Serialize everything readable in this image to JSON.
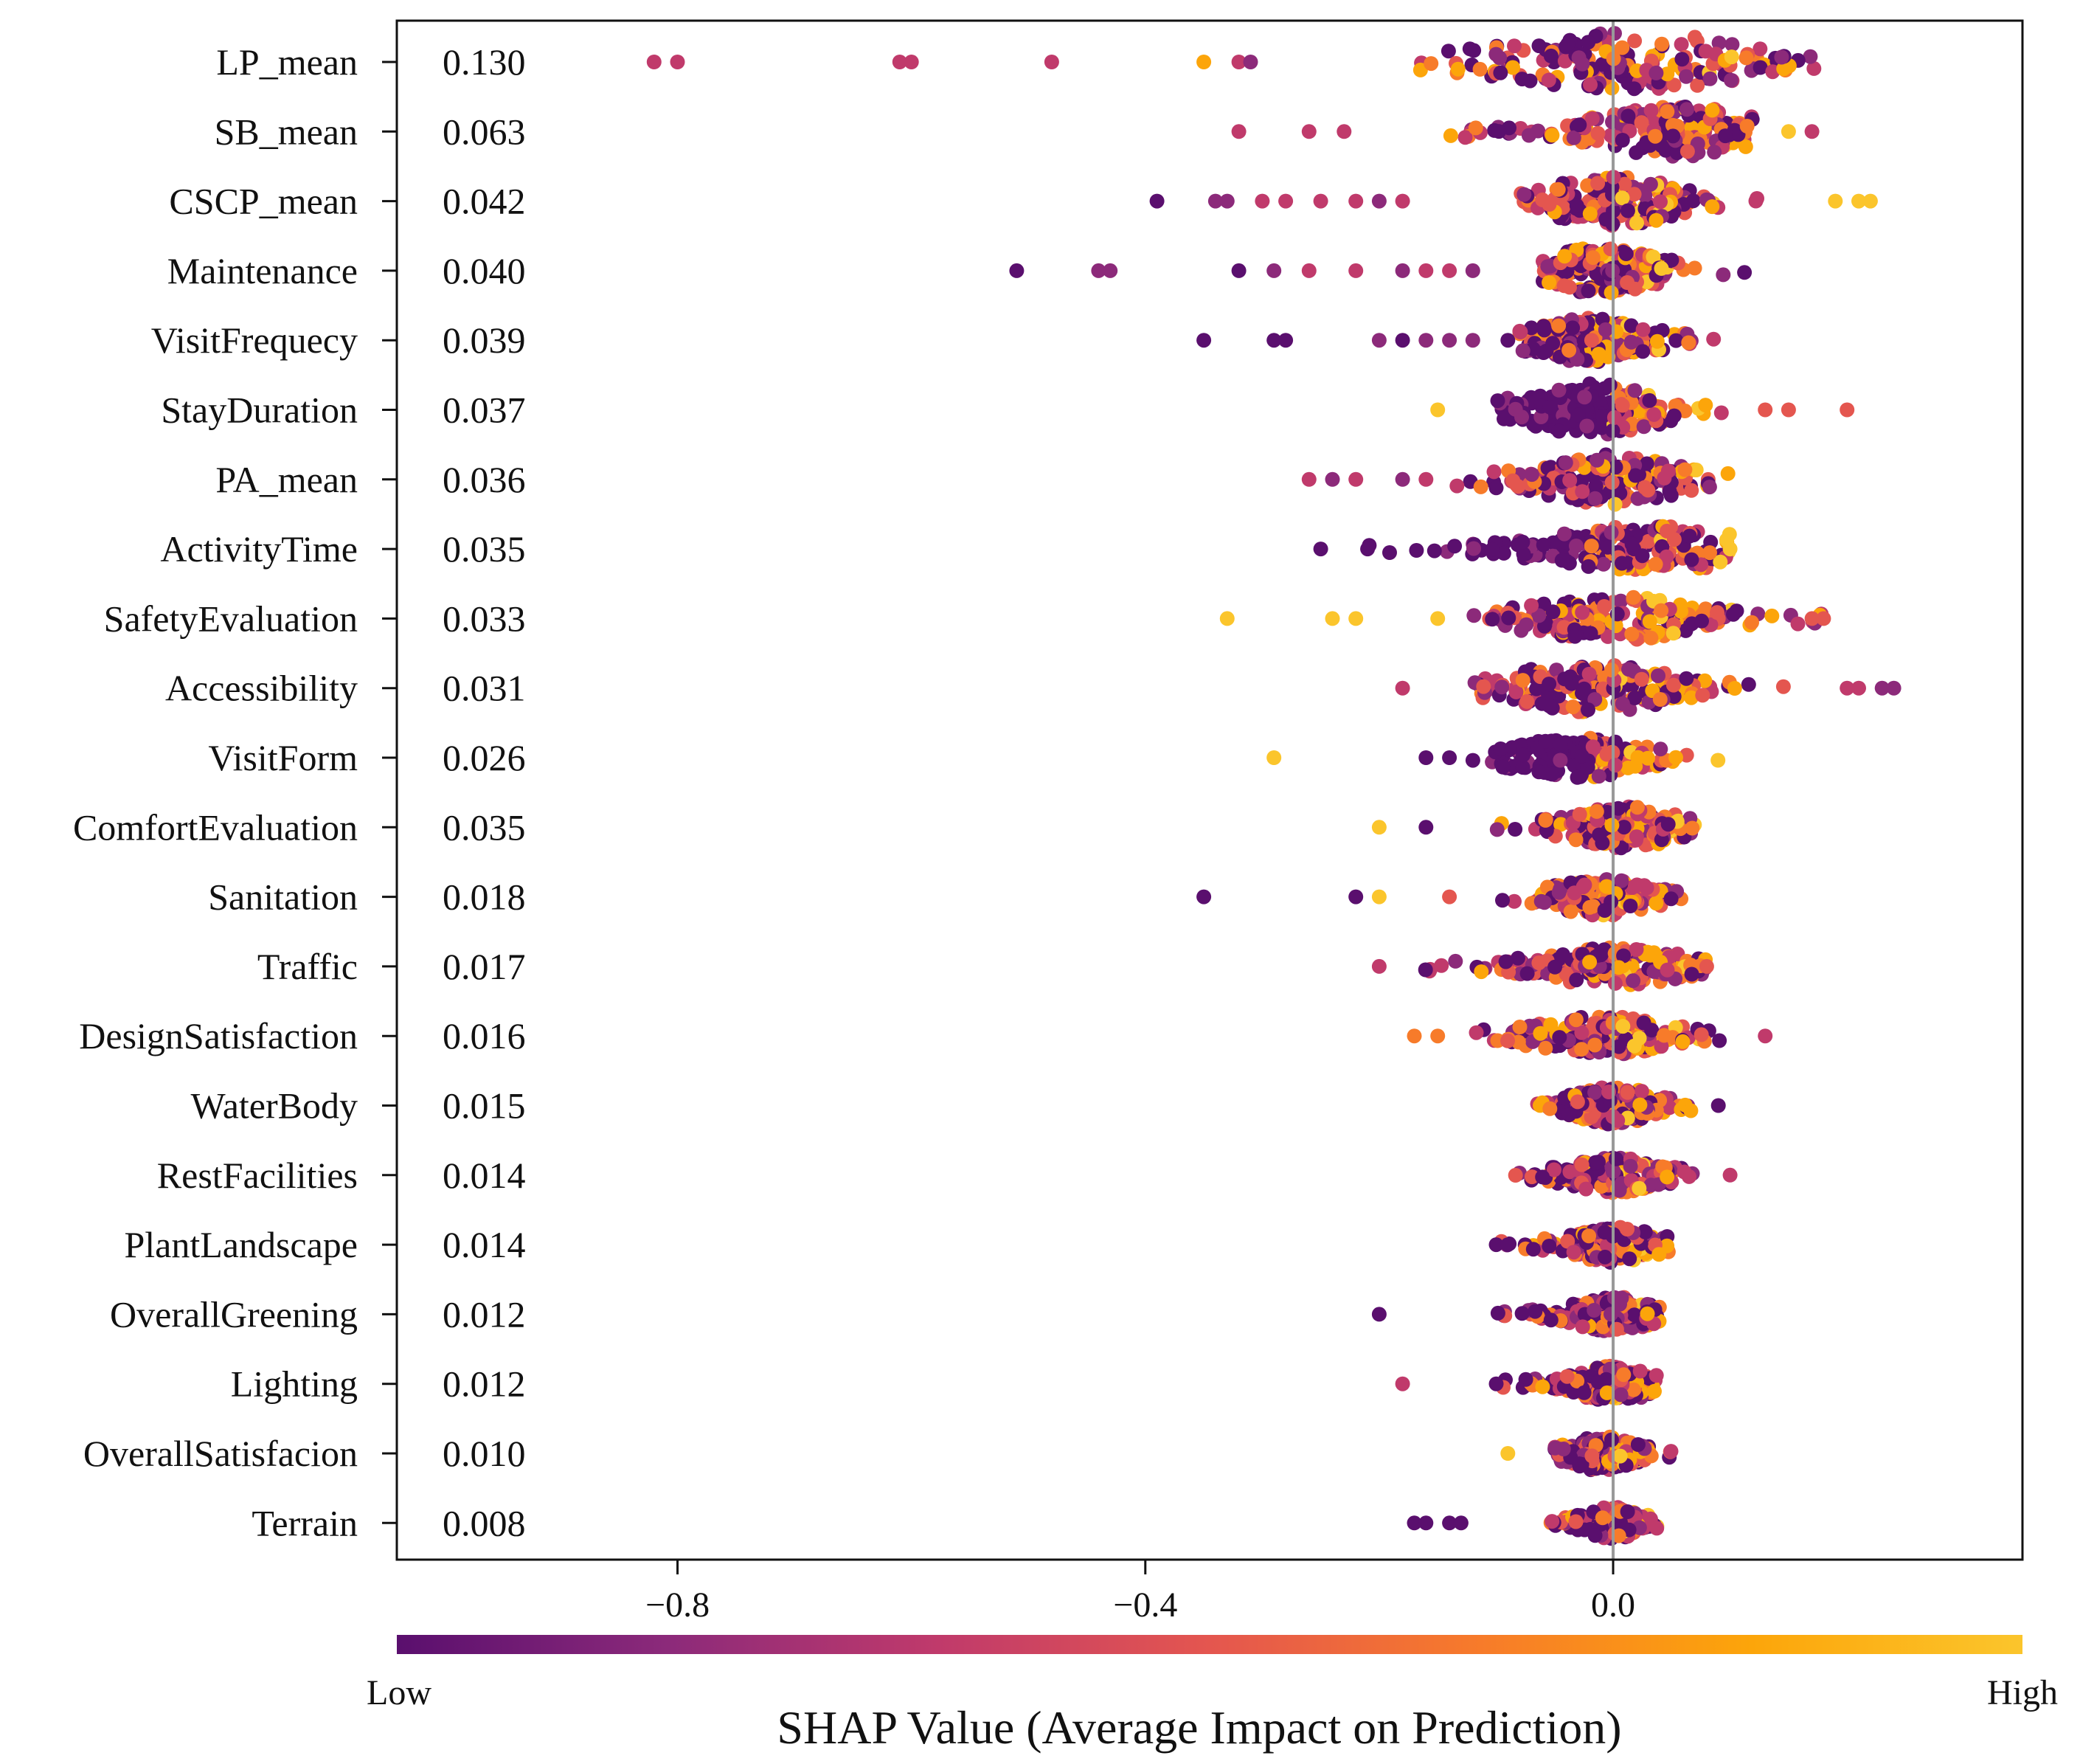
{
  "chart_data": {
    "type": "scatter",
    "subtype": "shap-beeswarm",
    "title": "",
    "xlabel": "SHAP Value (Average Impact on Prediction)",
    "ylabel": "",
    "xlim": [
      -1.04,
      0.35
    ],
    "xticks": [
      -0.8,
      -0.4,
      0.0
    ],
    "xtick_labels": [
      "−0.8",
      "−0.4",
      "0.0"
    ],
    "zero_line": true,
    "grid": false,
    "colorbar": {
      "low_label": "Low",
      "high_label": "High",
      "colors": [
        "#5a0f6e",
        "#8c2a7a",
        "#c03a6b",
        "#e4564f",
        "#f77b2a",
        "#fca50a",
        "#fbc52c"
      ]
    },
    "features": [
      {
        "name": "LP_mean",
        "importance": "0.130",
        "min": -0.82,
        "max": 0.31,
        "range": [
          -0.18,
          0.26
        ],
        "center": 0.02,
        "width": 1.0,
        "outliers": [
          [
            -0.82,
            2
          ],
          [
            -0.8,
            2
          ],
          [
            -0.61,
            2
          ],
          [
            -0.6,
            2
          ],
          [
            -0.48,
            2
          ],
          [
            -0.35,
            5
          ],
          [
            -0.32,
            2
          ],
          [
            -0.31,
            1
          ]
        ]
      },
      {
        "name": "SB_mean",
        "importance": "0.063",
        "min": -0.32,
        "max": 0.17,
        "range": [
          -0.18,
          0.12
        ],
        "center": 0.06,
        "width": 0.85,
        "outliers": [
          [
            -0.32,
            2
          ],
          [
            -0.26,
            2
          ],
          [
            -0.23,
            2
          ],
          [
            0.15,
            6
          ],
          [
            0.17,
            2
          ]
        ]
      },
      {
        "name": "CSCP_mean",
        "importance": "0.042",
        "min": -0.39,
        "max": 0.22,
        "range": [
          -0.08,
          0.14
        ],
        "center": 0.0,
        "width": 0.85,
        "outliers": [
          [
            -0.39,
            0
          ],
          [
            -0.34,
            1
          ],
          [
            -0.33,
            1
          ],
          [
            -0.3,
            2
          ],
          [
            -0.28,
            2
          ],
          [
            -0.25,
            2
          ],
          [
            -0.22,
            2
          ],
          [
            -0.2,
            1
          ],
          [
            -0.18,
            2
          ],
          [
            0.19,
            6
          ],
          [
            0.21,
            6
          ],
          [
            0.22,
            6
          ]
        ]
      },
      {
        "name": "Maintenance",
        "importance": "0.040",
        "min": -0.51,
        "max": 0.13,
        "range": [
          -0.06,
          0.13
        ],
        "center": -0.01,
        "width": 0.8,
        "outliers": [
          [
            -0.51,
            0
          ],
          [
            -0.44,
            1
          ],
          [
            -0.43,
            1
          ],
          [
            -0.32,
            0
          ],
          [
            -0.29,
            1
          ],
          [
            -0.26,
            2
          ],
          [
            -0.22,
            2
          ],
          [
            -0.18,
            1
          ],
          [
            -0.16,
            2
          ],
          [
            -0.14,
            2
          ],
          [
            -0.12,
            1
          ]
        ]
      },
      {
        "name": "VisitFrequecy",
        "importance": "0.039",
        "min": -0.35,
        "max": 0.11,
        "range": [
          -0.08,
          0.11
        ],
        "center": -0.02,
        "width": 0.75,
        "outliers": [
          [
            -0.35,
            0
          ],
          [
            -0.29,
            0
          ],
          [
            -0.28,
            0
          ],
          [
            -0.2,
            1
          ],
          [
            -0.18,
            0
          ],
          [
            -0.16,
            1
          ],
          [
            -0.14,
            1
          ],
          [
            -0.12,
            1
          ],
          [
            -0.09,
            0
          ]
        ]
      },
      {
        "name": "StayDuration",
        "importance": "0.037",
        "min": -0.15,
        "max": 0.2,
        "range": [
          -0.1,
          0.12
        ],
        "center": -0.02,
        "width": 0.9,
        "outliers": [
          [
            -0.15,
            6
          ],
          [
            0.13,
            3
          ],
          [
            0.15,
            3
          ],
          [
            0.2,
            3
          ]
        ]
      },
      {
        "name": "PA_mean",
        "importance": "0.036",
        "min": -0.26,
        "max": 0.11,
        "range": [
          -0.14,
          0.11
        ],
        "center": 0.0,
        "width": 0.85,
        "outliers": [
          [
            -0.26,
            2
          ],
          [
            -0.24,
            1
          ],
          [
            -0.22,
            2
          ],
          [
            -0.18,
            1
          ],
          [
            -0.16,
            2
          ]
        ]
      },
      {
        "name": "ActivityTime",
        "importance": "0.035",
        "min": -0.25,
        "max": 0.1,
        "range": [
          -0.22,
          0.1
        ],
        "center": 0.03,
        "width": 0.8,
        "outliers": [
          [
            -0.25,
            0
          ],
          [
            -0.21,
            0
          ],
          [
            0.1,
            6
          ]
        ]
      },
      {
        "name": "SafetyEvaluation",
        "importance": "0.033",
        "min": -0.33,
        "max": 0.18,
        "range": [
          -0.12,
          0.18
        ],
        "center": 0.0,
        "width": 0.75,
        "outliers": [
          [
            -0.33,
            6
          ],
          [
            -0.24,
            6
          ],
          [
            -0.22,
            6
          ],
          [
            -0.15,
            6
          ],
          [
            0.17,
            3
          ],
          [
            0.18,
            3
          ]
        ]
      },
      {
        "name": "Accessibility",
        "importance": "0.031",
        "min": -0.18,
        "max": 0.24,
        "range": [
          -0.12,
          0.16
        ],
        "center": -0.02,
        "width": 0.85,
        "outliers": [
          [
            -0.18,
            2
          ],
          [
            0.2,
            2
          ],
          [
            0.21,
            2
          ],
          [
            0.23,
            1
          ],
          [
            0.24,
            1
          ]
        ]
      },
      {
        "name": "VisitForm",
        "importance": "0.026",
        "min": -0.29,
        "max": 0.09,
        "range": [
          -0.12,
          0.09
        ],
        "center": -0.03,
        "width": 0.7,
        "outliers": [
          [
            -0.29,
            6
          ],
          [
            -0.16,
            0
          ],
          [
            -0.14,
            0
          ]
        ]
      },
      {
        "name": "ComfortEvaluation",
        "importance": "0.035",
        "min": -0.2,
        "max": 0.07,
        "range": [
          -0.12,
          0.07
        ],
        "center": 0.01,
        "width": 0.7,
        "outliers": [
          [
            -0.2,
            6
          ],
          [
            -0.16,
            0
          ]
        ]
      },
      {
        "name": "Sanitation",
        "importance": "0.018",
        "min": -0.35,
        "max": 0.06,
        "range": [
          -0.1,
          0.06
        ],
        "center": -0.01,
        "width": 0.65,
        "outliers": [
          [
            -0.35,
            0
          ],
          [
            -0.22,
            0
          ],
          [
            -0.2,
            6
          ],
          [
            -0.14,
            3
          ]
        ]
      },
      {
        "name": "Traffic",
        "importance": "0.017",
        "min": -0.2,
        "max": 0.08,
        "range": [
          -0.18,
          0.08
        ],
        "center": 0.0,
        "width": 0.65,
        "outliers": [
          [
            -0.2,
            2
          ],
          [
            0.08,
            3
          ]
        ]
      },
      {
        "name": "DesignSatisfaction",
        "importance": "0.016",
        "min": -0.17,
        "max": 0.13,
        "range": [
          -0.12,
          0.1
        ],
        "center": -0.01,
        "width": 0.7,
        "outliers": [
          [
            -0.17,
            4
          ],
          [
            -0.15,
            4
          ],
          [
            0.13,
            2
          ]
        ]
      },
      {
        "name": "WaterBody",
        "importance": "0.015",
        "min": -0.07,
        "max": 0.09,
        "range": [
          -0.07,
          0.07
        ],
        "center": 0.0,
        "width": 0.65,
        "outliers": [
          [
            0.09,
            0
          ]
        ]
      },
      {
        "name": "RestFacilities",
        "importance": "0.014",
        "min": -0.09,
        "max": 0.1,
        "range": [
          -0.09,
          0.07
        ],
        "center": 0.0,
        "width": 0.6,
        "outliers": [
          [
            0.1,
            2
          ]
        ]
      },
      {
        "name": "PlantLandscape",
        "importance": "0.014",
        "min": -0.1,
        "max": 0.05,
        "range": [
          -0.1,
          0.05
        ],
        "center": 0.0,
        "width": 0.6,
        "outliers": [
          [
            -0.1,
            0
          ],
          [
            -0.09,
            0
          ]
        ]
      },
      {
        "name": "OverallGreening",
        "importance": "0.012",
        "min": -0.2,
        "max": 0.04,
        "range": [
          -0.1,
          0.04
        ],
        "center": 0.0,
        "width": 0.6,
        "outliers": [
          [
            -0.2,
            0
          ]
        ]
      },
      {
        "name": "Lighting",
        "importance": "0.012",
        "min": -0.18,
        "max": 0.04,
        "range": [
          -0.1,
          0.04
        ],
        "center": 0.0,
        "width": 0.6,
        "outliers": [
          [
            -0.18,
            2
          ],
          [
            -0.1,
            0
          ]
        ]
      },
      {
        "name": "OverallSatisfacion",
        "importance": "0.010",
        "min": -0.09,
        "max": 0.06,
        "range": [
          -0.05,
          0.06
        ],
        "center": -0.01,
        "width": 0.6,
        "outliers": [
          [
            -0.09,
            6
          ]
        ]
      },
      {
        "name": "Terrain",
        "importance": "0.008",
        "min": -0.17,
        "max": 0.04,
        "range": [
          -0.06,
          0.04
        ],
        "center": 0.0,
        "width": 0.55,
        "outliers": [
          [
            -0.17,
            0
          ],
          [
            -0.16,
            0
          ],
          [
            -0.14,
            0
          ],
          [
            -0.13,
            0
          ]
        ]
      }
    ]
  }
}
